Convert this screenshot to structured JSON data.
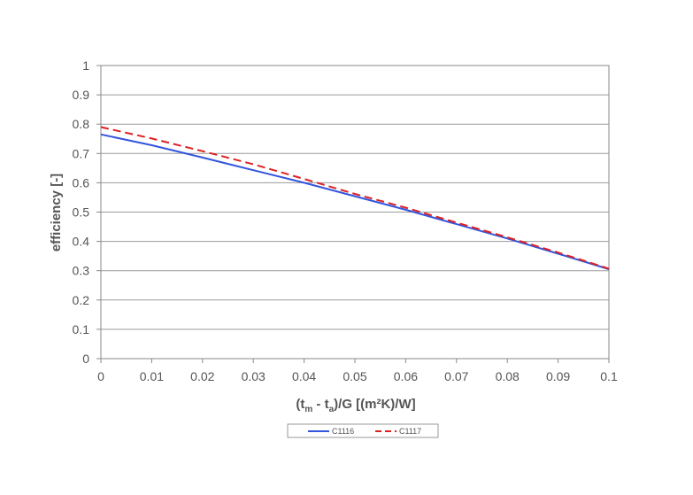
{
  "chart_data": {
    "type": "line",
    "title": "",
    "xlabel": {
      "t_open": "(t",
      "m_sub": "m",
      "minus": " - t",
      "a_sub": "a",
      "rest": ")/G [(m²K)/W]"
    },
    "ylabel": "efficiency [-]",
    "xlim": [
      0,
      0.1
    ],
    "ylim": [
      0,
      1
    ],
    "grid": true,
    "legend_position": "bottom",
    "x_ticks": [
      "0",
      "0.01",
      "0.02",
      "0.03",
      "0.04",
      "0.05",
      "0.06",
      "0.07",
      "0.08",
      "0.09",
      "0.1"
    ],
    "y_ticks": [
      "0",
      "0.1",
      "0.2",
      "0.3",
      "0.4",
      "0.5",
      "0.6",
      "0.7",
      "0.8",
      "0.9",
      "1"
    ],
    "x": [
      0,
      0.01,
      0.02,
      0.03,
      0.04,
      0.05,
      0.06,
      0.07,
      0.08,
      0.09,
      0.1
    ],
    "series": [
      {
        "name": "C1116",
        "color": "#3355dd",
        "dash": "solid",
        "values": [
          0.765,
          0.728,
          0.686,
          0.643,
          0.6,
          0.554,
          0.508,
          0.459,
          0.41,
          0.358,
          0.305
        ]
      },
      {
        "name": "C1117",
        "color": "#dd2222",
        "dash": "dashed",
        "values": [
          0.79,
          0.751,
          0.708,
          0.663,
          0.613,
          0.562,
          0.515,
          0.464,
          0.414,
          0.362,
          0.307
        ]
      }
    ]
  }
}
